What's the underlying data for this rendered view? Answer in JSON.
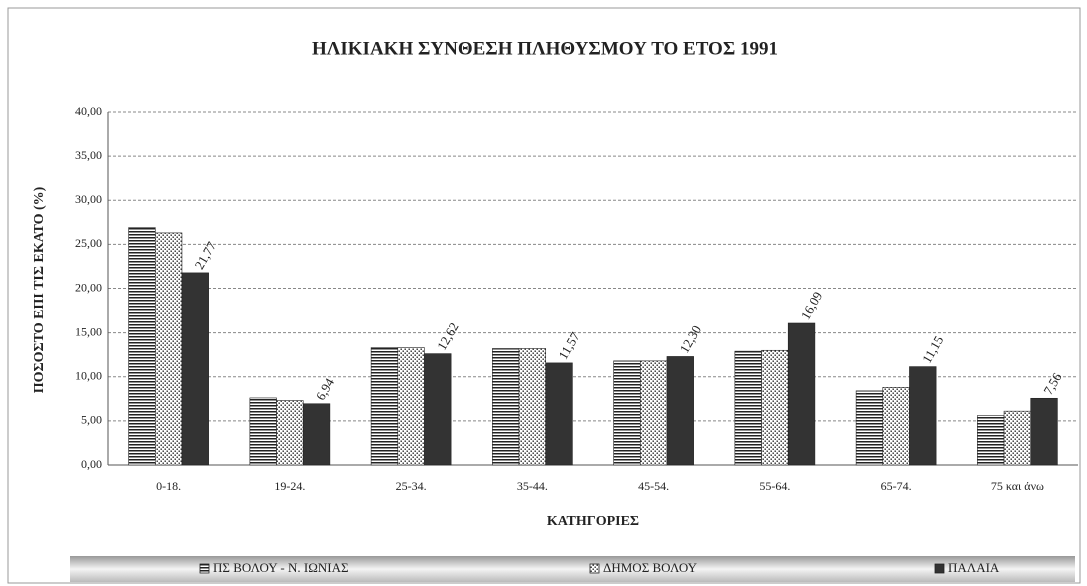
{
  "chart_data": {
    "type": "bar",
    "title": "ΗΛΙΚΙΑΚΗ ΣΥΝΘΕΣΗ ΠΛΗΘΥΣΜΟΥ ΤΟ ΕΤΟΣ 1991",
    "x_label": "ΚΑΤΗΓΟΡΙΕΣ",
    "y_label": "ΠΟΣΟΣΤΟ ΕΠΙ ΤΙΣ ΕΚΑΤΟ (%)",
    "categories": [
      "0-18.",
      "19-24.",
      "25-34.",
      "35-44.",
      "45-54.",
      "55-64.",
      "65-74.",
      "75 και άνω"
    ],
    "series": [
      {
        "name": "ΠΣ ΒΟΛΟΥ - Ν. ΙΩΝΙΑΣ",
        "color": "#222222",
        "pattern": "stripes",
        "values": [
          26.9,
          7.6,
          13.3,
          13.2,
          11.8,
          12.9,
          8.4,
          5.6
        ]
      },
      {
        "name": "ΔΗΜΟΣ ΒΟΛΟΥ",
        "color": "#222222",
        "pattern": "dots",
        "values": [
          26.3,
          7.3,
          13.3,
          13.2,
          11.8,
          13.0,
          8.8,
          6.1
        ]
      },
      {
        "name": "ΠΑΛΑΙΑ",
        "color": "#333333",
        "pattern": "solid",
        "values": [
          21.77,
          6.94,
          12.62,
          11.57,
          12.3,
          16.09,
          11.15,
          7.56
        ],
        "value_labels": [
          "21,77",
          "6,94",
          "12,62",
          "11,57",
          "12,30",
          "16,09",
          "11,15",
          "7,56"
        ]
      }
    ],
    "ylim": [
      0,
      40
    ],
    "yticks": [
      {
        "value": 0,
        "label": "0,00"
      },
      {
        "value": 5,
        "label": "5,00"
      },
      {
        "value": 10,
        "label": "10,00"
      },
      {
        "value": 15,
        "label": "15,00"
      },
      {
        "value": 20,
        "label": "20,00"
      },
      {
        "value": 25,
        "label": "25,00"
      },
      {
        "value": 30,
        "label": "30,00"
      },
      {
        "value": 35,
        "label": "35,00"
      },
      {
        "value": 40,
        "label": "40,00"
      }
    ],
    "grid": true,
    "legend": "bottom"
  }
}
